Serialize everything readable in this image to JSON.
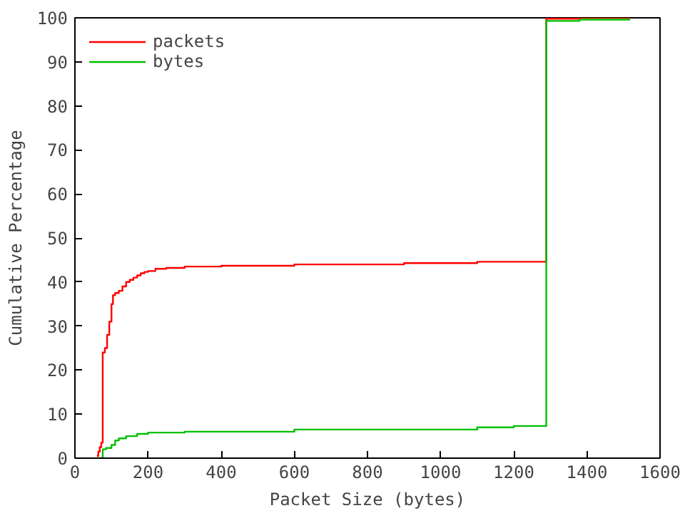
{
  "chart_data": {
    "type": "step",
    "xlabel": "Packet Size (bytes)",
    "ylabel": "Cumulative Percentage",
    "xlim": [
      0,
      1600
    ],
    "ylim": [
      0,
      100
    ],
    "xticks": [
      0,
      200,
      400,
      600,
      800,
      1000,
      1200,
      1400,
      1600
    ],
    "yticks": [
      0,
      10,
      20,
      30,
      40,
      50,
      60,
      70,
      80,
      90,
      100
    ],
    "grid": false,
    "legend": "top left",
    "marker": "none",
    "line_style": "solid",
    "series": [
      {
        "name": "packets",
        "color": "#ff0000",
        "x": [
          60,
          64,
          68,
          72,
          76,
          82,
          88,
          94,
          100,
          104,
          110,
          120,
          130,
          140,
          150,
          160,
          170,
          180,
          190,
          200,
          220,
          250,
          300,
          400,
          600,
          900,
          1100,
          1289,
          1380,
          1518
        ],
        "values": [
          0.5,
          1.5,
          2.5,
          3.5,
          24,
          25,
          28,
          31,
          35,
          37,
          37.5,
          38,
          39,
          40,
          40.5,
          41,
          41.5,
          42,
          42.3,
          42.5,
          43,
          43.2,
          43.5,
          43.7,
          44,
          44.3,
          44.6,
          99.8,
          100,
          100
        ]
      },
      {
        "name": "bytes",
        "color": "#00c000",
        "x": [
          60,
          76,
          85,
          100,
          110,
          120,
          140,
          170,
          200,
          300,
          600,
          1100,
          1200,
          1289,
          1380,
          1518
        ],
        "values": [
          0,
          2,
          2.3,
          3,
          4,
          4.5,
          5,
          5.5,
          5.8,
          6,
          6.5,
          7,
          7.3,
          99.3,
          99.6,
          99.6
        ]
      }
    ]
  }
}
